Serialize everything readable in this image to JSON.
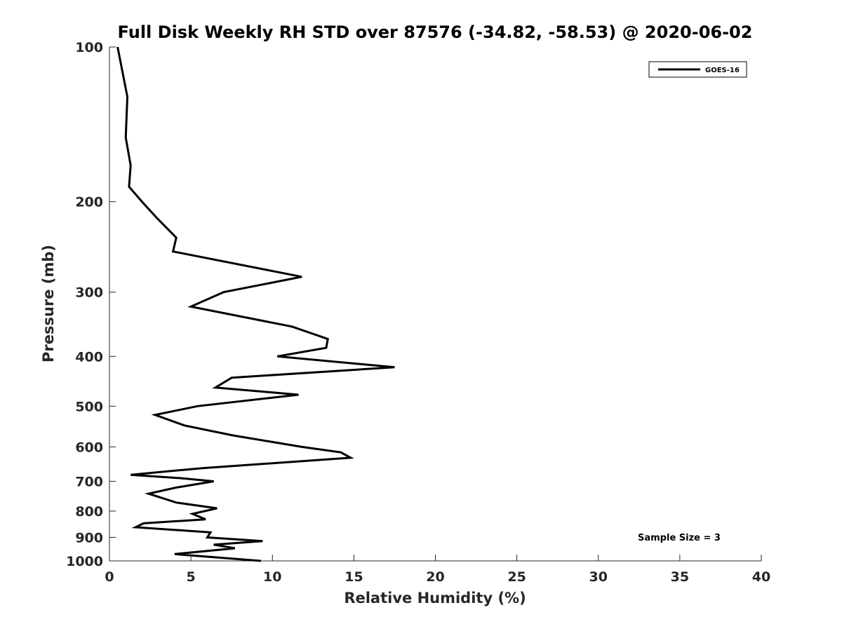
{
  "chart_data": {
    "type": "line",
    "title": "Full Disk Weekly RH STD over 87576 (-34.82, -58.53) @ 2020-06-02",
    "xlabel": "Relative Humidity (%)",
    "ylabel": "Pressure (mb)",
    "xlim": [
      0,
      40
    ],
    "ylim": [
      100,
      1000
    ],
    "y_scale": "log",
    "y_direction": "reversed",
    "xticks": [
      0,
      5,
      10,
      15,
      20,
      25,
      30,
      35,
      40
    ],
    "yticks": [
      100,
      200,
      300,
      400,
      500,
      600,
      700,
      800,
      900,
      1000
    ],
    "legend": {
      "position": "top-right",
      "entries": [
        "GOES-16"
      ]
    },
    "annotation": "Sample Size = 3",
    "series": [
      {
        "name": "GOES-16",
        "color": "#000000",
        "points": [
          [
            0.5,
            100
          ],
          [
            1.1,
            125
          ],
          [
            1.0,
            150
          ],
          [
            1.3,
            170
          ],
          [
            1.2,
            187
          ],
          [
            2.0,
            200
          ],
          [
            2.9,
            215
          ],
          [
            4.1,
            235
          ],
          [
            3.9,
            250
          ],
          [
            11.8,
            280
          ],
          [
            7.0,
            300
          ],
          [
            5.0,
            320
          ],
          [
            11.2,
            350
          ],
          [
            13.4,
            370
          ],
          [
            13.3,
            385
          ],
          [
            10.3,
            400
          ],
          [
            17.5,
            420
          ],
          [
            7.5,
            440
          ],
          [
            6.5,
            460
          ],
          [
            11.6,
            475
          ],
          [
            5.4,
            500
          ],
          [
            2.8,
            520
          ],
          [
            4.6,
            545
          ],
          [
            7.6,
            570
          ],
          [
            11.8,
            600
          ],
          [
            14.2,
            615
          ],
          [
            14.8,
            630
          ],
          [
            5.7,
            660
          ],
          [
            1.3,
            680
          ],
          [
            4.3,
            690
          ],
          [
            6.4,
            700
          ],
          [
            4.1,
            720
          ],
          [
            2.4,
            740
          ],
          [
            4.1,
            770
          ],
          [
            6.6,
            790
          ],
          [
            5.1,
            810
          ],
          [
            5.9,
            830
          ],
          [
            2.1,
            845
          ],
          [
            1.6,
            860
          ],
          [
            6.2,
            880
          ],
          [
            6.0,
            900
          ],
          [
            9.4,
            915
          ],
          [
            6.4,
            930
          ],
          [
            7.7,
            945
          ],
          [
            4.0,
            970
          ],
          [
            9.3,
            1000
          ]
        ]
      }
    ]
  }
}
